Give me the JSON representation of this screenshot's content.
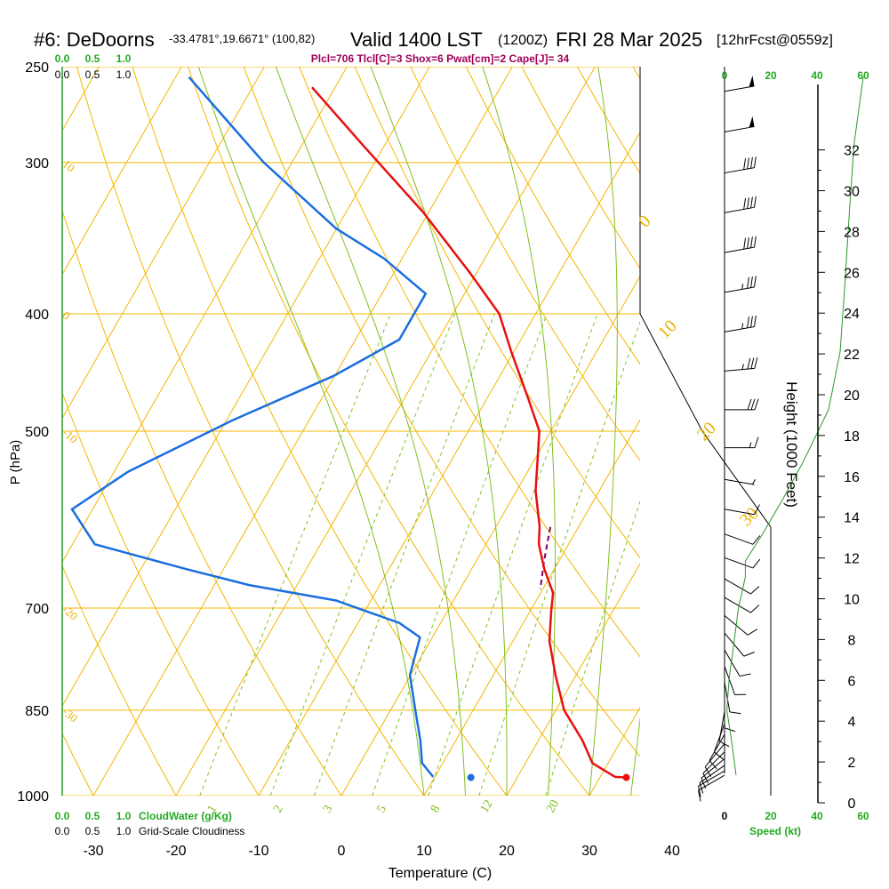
{
  "chart_data": {
    "type": "skew-t",
    "header": {
      "station": "#6: DeDoorns",
      "coords": "-33.4781°,19.6671° (100,82)",
      "valid": "Valid 1400 LST",
      "zulu": "(1200Z)",
      "date": "FRI 28 Mar 2025",
      "forecast": "[12hrFcst@0559z]"
    },
    "indices": "Plcl=706 Tlcl[C]=3 Shox=6 Pwat[cm]=2 Cape[J]= 34",
    "xlabel": "Temperature (C)",
    "ylabel": "P (hPa)",
    "right_axis_label": "Height (1000 Feet)",
    "x_ticks": [
      -30,
      -20,
      -10,
      0,
      10,
      20,
      30,
      40
    ],
    "pressure_ticks": [
      250,
      300,
      400,
      500,
      700,
      850,
      1000
    ],
    "height_ticks": [
      0,
      2,
      4,
      6,
      8,
      10,
      12,
      14,
      16,
      18,
      20,
      22,
      24,
      26,
      28,
      30,
      32
    ],
    "xlim": [
      -33.5,
      36
    ],
    "ylim_hpa": [
      1000,
      250
    ],
    "isotherm_labels": [
      {
        "text": "10",
        "t": 10,
        "p": 300
      },
      {
        "text": "0",
        "t": 0,
        "p": 400
      },
      {
        "text": "-10",
        "t": -10,
        "p": 500
      },
      {
        "text": "-20",
        "t": -20,
        "p": 700
      },
      {
        "text": "-30",
        "t": -30,
        "p": 850
      }
    ],
    "adiabat_labels": [
      {
        "text": "0",
        "t": 36,
        "p": 340
      },
      {
        "text": "10",
        "t": 40,
        "p": 420
      },
      {
        "text": "20",
        "t": 45,
        "p": 510
      },
      {
        "text": "30",
        "t": 50,
        "p": 600
      }
    ],
    "mixing_ratio_labels": [
      {
        "text": "1",
        "t": -16,
        "p": 985
      },
      {
        "text": "2",
        "t": -8,
        "p": 985
      },
      {
        "text": "3",
        "t": -2,
        "p": 985
      },
      {
        "text": "5",
        "t": 4.5,
        "p": 985
      },
      {
        "text": "8",
        "t": 11,
        "p": 985
      },
      {
        "text": "12",
        "t": 17,
        "p": 985
      },
      {
        "text": "20",
        "t": 25,
        "p": 985
      }
    ],
    "temperature": [
      {
        "t": 33.2,
        "p": 966
      },
      {
        "t": 31.8,
        "p": 965
      },
      {
        "t": 28.1,
        "p": 940
      },
      {
        "t": 25.3,
        "p": 900
      },
      {
        "t": 21.0,
        "p": 850
      },
      {
        "t": 17.5,
        "p": 795
      },
      {
        "t": 14.4,
        "p": 745
      },
      {
        "t": 12.6,
        "p": 705
      },
      {
        "t": 11.5,
        "p": 680
      },
      {
        "t": 8.8,
        "p": 650
      },
      {
        "t": 6.4,
        "p": 620
      },
      {
        "t": 5.3,
        "p": 600
      },
      {
        "t": 2.3,
        "p": 560
      },
      {
        "t": -1.4,
        "p": 500
      },
      {
        "t": -5.0,
        "p": 470
      },
      {
        "t": -10.3,
        "p": 430
      },
      {
        "t": -14.4,
        "p": 400
      },
      {
        "t": -20.8,
        "p": 370
      },
      {
        "t": -30.6,
        "p": 330
      },
      {
        "t": -42.7,
        "p": 290
      },
      {
        "t": -52.8,
        "p": 260
      }
    ],
    "dewpoint": [
      {
        "t": 9.8,
        "p": 965
      },
      {
        "t": 7.5,
        "p": 940
      },
      {
        "t": 5.7,
        "p": 900
      },
      {
        "t": 3.0,
        "p": 850
      },
      {
        "t": -0.1,
        "p": 795
      },
      {
        "t": -1.5,
        "p": 740
      },
      {
        "t": -5.0,
        "p": 720
      },
      {
        "t": -14.2,
        "p": 690
      },
      {
        "t": -25.8,
        "p": 670
      },
      {
        "t": -34.5,
        "p": 650
      },
      {
        "t": -47.3,
        "p": 620
      },
      {
        "t": -52.5,
        "p": 580
      },
      {
        "t": -48.3,
        "p": 540
      },
      {
        "t": -39.3,
        "p": 490
      },
      {
        "t": -30.1,
        "p": 450
      },
      {
        "t": -24.7,
        "p": 420
      },
      {
        "t": -24.7,
        "p": 385
      },
      {
        "t": -32.2,
        "p": 360
      },
      {
        "t": -40.1,
        "p": 340
      },
      {
        "t": -53.4,
        "p": 300
      },
      {
        "t": -68.4,
        "p": 255
      }
    ],
    "surface_temperature": {
      "t": 33.2,
      "p": 966
    },
    "surface_dewpoint": {
      "t": 14.4,
      "p": 966
    },
    "parcel": [
      {
        "t": 6.6,
        "p": 600
      },
      {
        "t": 8.2,
        "p": 640
      },
      {
        "t": 9.7,
        "p": 675
      }
    ],
    "winds": [
      {
        "p": 262,
        "dir": 260,
        "spd": 50
      },
      {
        "p": 283,
        "dir": 260,
        "spd": 50
      },
      {
        "p": 306,
        "dir": 260,
        "spd": 40
      },
      {
        "p": 330,
        "dir": 260,
        "spd": 40
      },
      {
        "p": 356,
        "dir": 260,
        "spd": 40
      },
      {
        "p": 384,
        "dir": 260,
        "spd": 35
      },
      {
        "p": 414,
        "dir": 260,
        "spd": 35
      },
      {
        "p": 446,
        "dir": 265,
        "spd": 35
      },
      {
        "p": 480,
        "dir": 270,
        "spd": 30
      },
      {
        "p": 516,
        "dir": 270,
        "spd": 15
      },
      {
        "p": 548,
        "dir": 280,
        "spd": 5
      },
      {
        "p": 580,
        "dir": 280,
        "spd": 10
      },
      {
        "p": 608,
        "dir": 290,
        "spd": 10
      },
      {
        "p": 636,
        "dir": 290,
        "spd": 10
      },
      {
        "p": 662,
        "dir": 300,
        "spd": 10
      },
      {
        "p": 686,
        "dir": 300,
        "spd": 10
      },
      {
        "p": 710,
        "dir": 310,
        "spd": 10
      },
      {
        "p": 734,
        "dir": 320,
        "spd": 10
      },
      {
        "p": 758,
        "dir": 330,
        "spd": 10
      },
      {
        "p": 782,
        "dir": 340,
        "spd": 10
      },
      {
        "p": 806,
        "dir": 350,
        "spd": 10
      },
      {
        "p": 830,
        "dir": 0,
        "spd": 10
      },
      {
        "p": 852,
        "dir": 10,
        "spd": 10
      },
      {
        "p": 872,
        "dir": 20,
        "spd": 10
      },
      {
        "p": 890,
        "dir": 30,
        "spd": 10
      },
      {
        "p": 906,
        "dir": 40,
        "spd": 10
      },
      {
        "p": 920,
        "dir": 45,
        "spd": 10
      },
      {
        "p": 932,
        "dir": 50,
        "spd": 10
      },
      {
        "p": 944,
        "dir": 55,
        "spd": 10
      },
      {
        "p": 954,
        "dir": 60,
        "spd": 10
      },
      {
        "p": 962,
        "dir": 60,
        "spd": 10
      }
    ],
    "speed_axis": {
      "ticks_top": [
        "0",
        "20",
        "40",
        "60"
      ],
      "ticks_bottom": [
        "0",
        "20",
        "40",
        "60"
      ],
      "label": "Speed (kt)",
      "profile": [
        {
          "p": 962,
          "v": 5
        },
        {
          "p": 900,
          "v": 3
        },
        {
          "p": 850,
          "v": 1
        },
        {
          "p": 800,
          "v": 2
        },
        {
          "p": 750,
          "v": 4
        },
        {
          "p": 700,
          "v": 6
        },
        {
          "p": 660,
          "v": 9
        },
        {
          "p": 640,
          "v": 9
        },
        {
          "p": 610,
          "v": 16
        },
        {
          "p": 570,
          "v": 25
        },
        {
          "p": 530,
          "v": 34
        },
        {
          "p": 480,
          "v": 45
        },
        {
          "p": 430,
          "v": 50
        },
        {
          "p": 380,
          "v": 52
        },
        {
          "p": 330,
          "v": 54
        },
        {
          "p": 290,
          "v": 56
        },
        {
          "p": 255,
          "v": 60
        }
      ]
    },
    "cloud_axis": {
      "cloudwater_ticks": [
        "0.0",
        "0.5",
        "1.0"
      ],
      "cloudwater_label": "CloudWater (g/Kg)",
      "cloudiness_ticks": [
        "0.0",
        "0.5",
        "1.0"
      ],
      "cloudiness_label": "Grid-Scale Cloudiness"
    },
    "colors": {
      "isobar": "#f5b700",
      "isotherm": "#f5b700",
      "dry_adiabat": "#f5b700",
      "moist_adiabat": "#80c020",
      "mixing_ratio": "#80c020",
      "temperature": "#e81010",
      "dewpoint": "#1a6ee0",
      "parcel": "#800060",
      "speed": "#2a9a2a",
      "cloud": "#2a9a2a",
      "indices": "#a0005a",
      "label_green": "#22aa22"
    }
  }
}
